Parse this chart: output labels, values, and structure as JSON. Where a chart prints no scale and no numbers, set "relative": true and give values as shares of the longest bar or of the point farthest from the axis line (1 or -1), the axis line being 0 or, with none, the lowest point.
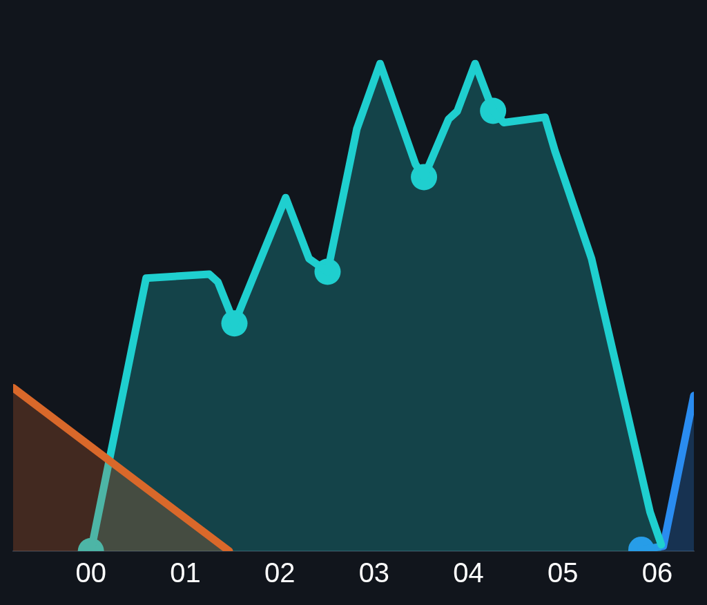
{
  "chart_data": {
    "type": "area",
    "relative": true,
    "xlim": [
      -0.824,
      6.387
    ],
    "xticks": [
      {
        "value": 0,
        "label": "00"
      },
      {
        "value": 1,
        "label": "01"
      },
      {
        "value": 2,
        "label": "02"
      },
      {
        "value": 3,
        "label": "03"
      },
      {
        "value": 4,
        "label": "04"
      },
      {
        "value": 5,
        "label": "05"
      },
      {
        "value": 6,
        "label": "06"
      }
    ],
    "grid": false,
    "legend": false,
    "tick_labels": "x",
    "line_style": "solid",
    "series": [
      {
        "color": "#d9682a",
        "x": [
          -0.824,
          1.465
        ],
        "values": [
          0.335,
          0
        ]
      },
      {
        "color": "#1fcfcf",
        "x": [
          0,
          0.585,
          1.254,
          1.345,
          1.52,
          2.063,
          2.31,
          2.507,
          2.817,
          3.063,
          3.437,
          3.528,
          3.789,
          3.88,
          4.07,
          4.26,
          4.373,
          4.81,
          4.915,
          5.303,
          5.923,
          6.042
        ],
        "values": [
          0,
          0.56,
          0.568,
          0.552,
          0.467,
          0.725,
          0.6,
          0.573,
          0.866,
          1,
          0.794,
          0.767,
          0.886,
          0.902,
          1,
          0.903,
          0.879,
          0.89,
          0.821,
          0.6,
          0.08,
          0.013
        ]
      },
      {
        "color": "#2a8cf0",
        "x": [
          5.831,
          6.063,
          6.387
        ],
        "values": [
          0.003,
          0.01,
          0.319
        ]
      },
      {
        "type": "scatter",
        "marker": "circle",
        "color": "#1fcfcf",
        "x": [
          0,
          1.52,
          2.507,
          3.528,
          4.26
        ],
        "values": [
          0,
          0.467,
          0.573,
          0.767,
          0.903
        ]
      },
      {
        "type": "scatter",
        "marker": "circle",
        "color": "#2a8cf0",
        "x": [
          5.831
        ],
        "values": [
          0.003
        ]
      }
    ]
  }
}
